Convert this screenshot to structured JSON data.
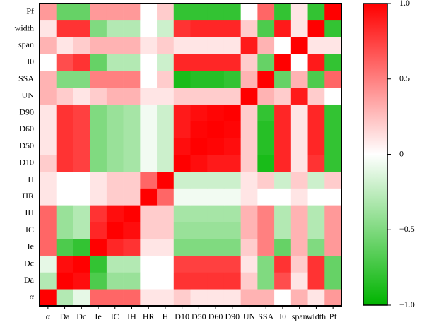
{
  "chart_data": {
    "type": "heatmap",
    "variables": [
      "α",
      "Da",
      "Dc",
      "Ie",
      "IC",
      "IH",
      "HR",
      "H",
      "D10",
      "D50",
      "D60",
      "D90",
      "UN",
      "SSA",
      "Iθ",
      "span",
      "width",
      "Pf"
    ],
    "values": [
      [
        1,
        -0.3,
        -0.1,
        0.6,
        0.6,
        0.6,
        0.1,
        0.1,
        0.2,
        0.1,
        0.1,
        0.1,
        0.3,
        0.3,
        0.0,
        0.3,
        0.1,
        0.4
      ],
      [
        -0.3,
        1,
        0.95,
        -0.7,
        -0.4,
        -0.4,
        0.0,
        0.0,
        0.8,
        0.8,
        0.8,
        0.8,
        0.2,
        -0.5,
        0.7,
        0.1,
        0.8,
        -0.6
      ],
      [
        -0.1,
        0.95,
        1,
        -0.8,
        -0.3,
        -0.3,
        0.0,
        0.0,
        0.75,
        0.75,
        0.75,
        0.75,
        0.1,
        -0.5,
        0.8,
        0.2,
        0.8,
        -0.6
      ],
      [
        0.6,
        -0.7,
        -0.8,
        1,
        0.85,
        0.8,
        0.1,
        0.1,
        -0.5,
        -0.5,
        -0.5,
        -0.5,
        0.2,
        0.5,
        -0.6,
        0.3,
        -0.5,
        0.4
      ],
      [
        0.6,
        -0.4,
        -0.3,
        0.85,
        1,
        0.95,
        0.2,
        0.2,
        -0.4,
        -0.4,
        -0.4,
        -0.4,
        0.3,
        0.5,
        -0.3,
        0.3,
        -0.3,
        0.4
      ],
      [
        0.6,
        -0.4,
        -0.3,
        0.8,
        0.95,
        1,
        0.2,
        0.2,
        -0.35,
        -0.35,
        -0.35,
        -0.35,
        0.3,
        0.5,
        -0.3,
        0.3,
        -0.3,
        0.4
      ],
      [
        0.1,
        0.0,
        0.0,
        0.1,
        0.2,
        0.2,
        1,
        0.6,
        -0.05,
        -0.05,
        -0.05,
        -0.05,
        0.1,
        0.0,
        0.0,
        0.1,
        0.0,
        0.0
      ],
      [
        0.1,
        0.0,
        0.0,
        0.1,
        0.2,
        0.2,
        0.6,
        1,
        -0.2,
        -0.2,
        -0.2,
        -0.2,
        0.1,
        0.2,
        -0.2,
        0.2,
        -0.2,
        0.2
      ],
      [
        0.2,
        0.8,
        0.75,
        -0.5,
        -0.4,
        -0.35,
        -0.05,
        -0.2,
        1,
        0.95,
        0.9,
        0.9,
        0.2,
        -0.9,
        0.85,
        0.1,
        0.8,
        -0.8
      ],
      [
        0.1,
        0.8,
        0.75,
        -0.5,
        -0.4,
        -0.35,
        -0.05,
        -0.2,
        0.95,
        1,
        0.98,
        0.95,
        0.2,
        -0.85,
        0.85,
        0.1,
        0.85,
        -0.8
      ],
      [
        0.1,
        0.8,
        0.75,
        -0.5,
        -0.4,
        -0.35,
        -0.05,
        -0.2,
        0.9,
        0.98,
        1,
        0.98,
        0.2,
        -0.85,
        0.85,
        0.1,
        0.85,
        -0.8
      ],
      [
        0.1,
        0.8,
        0.75,
        -0.5,
        -0.4,
        -0.35,
        -0.05,
        -0.2,
        0.9,
        0.95,
        0.98,
        1,
        0.2,
        -0.8,
        0.85,
        0.1,
        0.85,
        -0.8
      ],
      [
        0.3,
        0.2,
        0.1,
        0.2,
        0.3,
        0.3,
        0.1,
        0.1,
        0.2,
        0.2,
        0.2,
        0.2,
        1,
        0.3,
        0.2,
        0.9,
        0.2,
        0.0
      ],
      [
        0.3,
        -0.5,
        -0.5,
        0.5,
        0.5,
        0.5,
        0.0,
        0.2,
        -0.9,
        -0.85,
        -0.85,
        -0.8,
        0.3,
        1,
        -0.6,
        0.3,
        -0.7,
        0.6
      ],
      [
        0.0,
        0.7,
        0.8,
        -0.6,
        -0.3,
        -0.3,
        0.0,
        -0.2,
        0.85,
        0.85,
        0.85,
        0.85,
        0.2,
        -0.6,
        1,
        0.0,
        0.9,
        -0.8
      ],
      [
        0.3,
        0.1,
        0.2,
        0.3,
        0.3,
        0.3,
        0.1,
        0.2,
        0.1,
        0.1,
        0.1,
        0.1,
        0.9,
        0.3,
        0.0,
        1,
        0.1,
        0.1
      ],
      [
        0.1,
        0.8,
        0.8,
        -0.5,
        -0.3,
        -0.3,
        0.0,
        -0.2,
        0.8,
        0.85,
        0.85,
        0.85,
        0.2,
        -0.7,
        0.9,
        0.1,
        1,
        -0.8
      ],
      [
        0.4,
        -0.6,
        -0.6,
        0.4,
        0.4,
        0.4,
        0.0,
        0.2,
        -0.8,
        -0.8,
        -0.8,
        -0.8,
        0.0,
        0.6,
        -0.8,
        0.1,
        -0.8,
        1
      ]
    ],
    "colors": [
      "#00b400",
      "#ffffff",
      "#ff0000"
    ],
    "zlim": [
      -1,
      1
    ],
    "zticks": [
      {
        "value": 1,
        "label": "1.0"
      },
      0.5,
      0,
      {
        "value": -0.5,
        "label": "−0.5"
      },
      {
        "value": -1,
        "label": "−1.0"
      }
    ]
  }
}
